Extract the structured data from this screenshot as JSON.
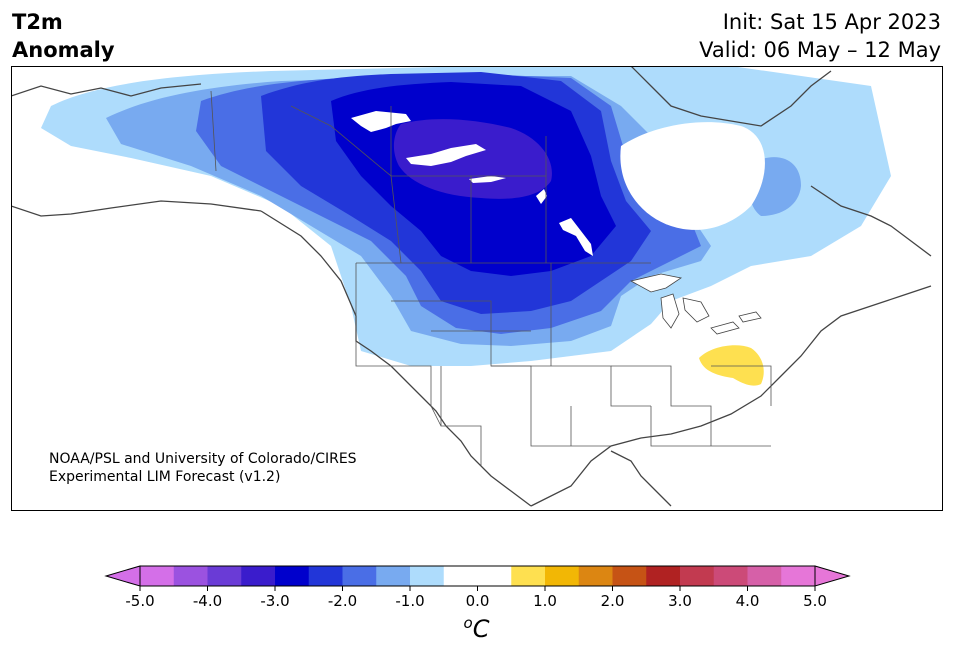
{
  "header": {
    "title_line1": "T2m",
    "title_line2": "Anomaly",
    "init": "Init: Sat 15 Apr 2023",
    "valid": "Valid: 06 May – 12 May"
  },
  "credit": {
    "line1": "NOAA/PSL and University of Colorado/CIRES",
    "line2": "Experimental LIM Forecast (v1.2)"
  },
  "colorbar": {
    "unit_base": "C",
    "unit_sup": "o",
    "tick_labels": [
      "-5.0",
      "-4.0",
      "-3.0",
      "-2.0",
      "-1.0",
      "0.0",
      "1.0",
      "2.0",
      "3.0",
      "4.0",
      "5.0"
    ],
    "colors": [
      "#d46fe8",
      "#9b52e0",
      "#6a3bd6",
      "#3a1ccc",
      "#0000cc",
      "#2236d8",
      "#4a6ee6",
      "#78aaf0",
      "#aedcfc",
      "#ffffff",
      "#ffffff",
      "#fee050",
      "#f2b705",
      "#dc8612",
      "#c65315",
      "#b02222",
      "#c23a50",
      "#cc4a78",
      "#d660a8",
      "#e676d8"
    ],
    "min": -5.0,
    "max": 5.0
  },
  "map": {
    "region": "North America",
    "anomaly_colors": {
      "light_blue": "#aedcfc",
      "sky_blue": "#78aaf0",
      "medium_blue": "#4a6ee6",
      "blue": "#2236d8",
      "deep_blue": "#0000cc",
      "indigo": "#3a1ccc",
      "warm_yellow": "#fee050",
      "lake": "#ffffff",
      "border": "#444444"
    }
  }
}
